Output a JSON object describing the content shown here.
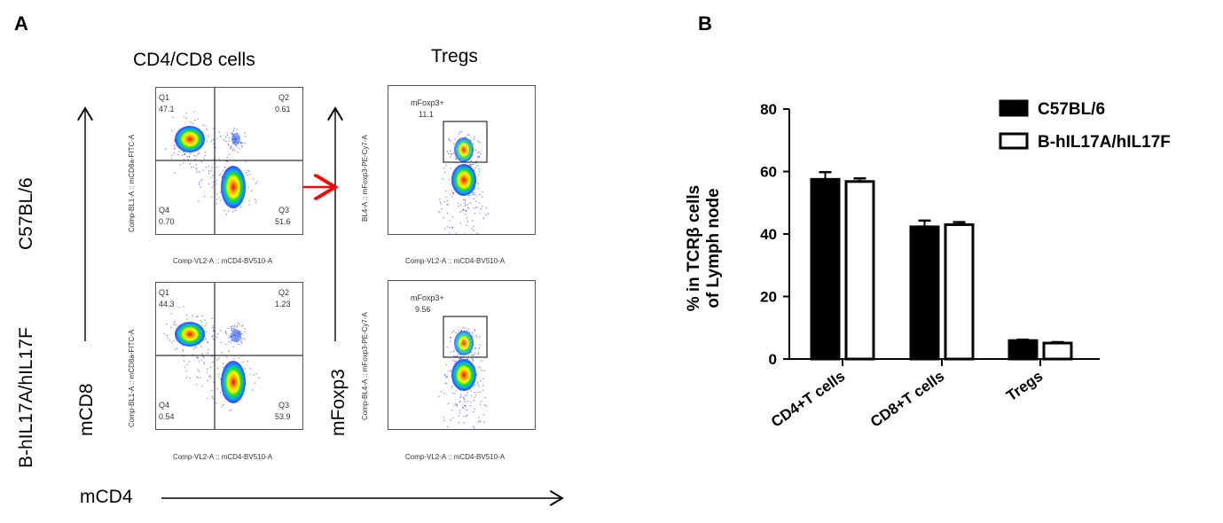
{
  "panel_a": {
    "letter": "A",
    "column_titles": [
      "CD4/CD8 cells",
      "Tregs"
    ],
    "row_labels": [
      "C57BL/6",
      "B-hIL17A/hIL17F"
    ],
    "axis_labels": {
      "y_left": "mCD8",
      "y_right": "mFoxp3",
      "x_bottom": "mCD4"
    },
    "plots": [
      {
        "y_axis": "Comp-BL1-A :: mCD8a-FITC-A",
        "x_axis": "Comp-VL2-A :: mCD4-BV510-A",
        "q1_name": "Q1",
        "q1": "47.1",
        "q2_name": "Q2",
        "q2": "0.61",
        "q3_name": "Q3",
        "q3": "51.6",
        "q4_name": "Q4",
        "q4": "0.70"
      },
      {
        "y_axis": "BL4-A :: mFoxp3-PE-Cy7-A",
        "x_axis": "Comp-VL2-A :: mCD4-BV510-A",
        "gate_name": "mFoxp3+",
        "gate_value": "11.1"
      },
      {
        "y_axis": "Comp-BL1-A :: mCD8a-FITC-A",
        "x_axis": "Comp-VL2-A :: mCD4-BV510-A",
        "q1_name": "Q1",
        "q1": "44.3",
        "q2_name": "Q2",
        "q2": "1.23",
        "q3_name": "Q3",
        "q3": "53.9",
        "q4_name": "Q4",
        "q4": "0.54"
      },
      {
        "y_axis": "Comp-BL4-A :: mFoxp3-PE-Cy7-A",
        "x_axis": "Comp-VL2-A :: mCD4-BV510-A",
        "gate_name": "mFoxp3+",
        "gate_value": "9.56"
      }
    ],
    "colors": {
      "arrow": "#ff0000"
    }
  },
  "panel_b": {
    "letter": "B"
  },
  "chart_data": {
    "type": "bar",
    "categories": [
      "CD4+T cells",
      "CD8+T cells",
      "Tregs"
    ],
    "series": [
      {
        "name": "C57BL/6",
        "values": [
          57.5,
          42.3,
          5.9
        ],
        "errors": [
          2.3,
          2.0,
          0.3
        ],
        "fill": "#000000"
      },
      {
        "name": "B-hIL17A/hIL17F",
        "values": [
          56.8,
          43.0,
          5.1
        ],
        "errors": [
          1.0,
          0.8,
          0.3
        ],
        "fill": "#ffffff"
      }
    ],
    "ylabel_line1": "% in TCRβ cells",
    "ylabel_line2": "of Lymph node",
    "ylim": [
      0,
      80
    ],
    "yticks": [
      "0",
      "20",
      "40",
      "60",
      "80"
    ],
    "legend": "top-right",
    "grid": false
  }
}
